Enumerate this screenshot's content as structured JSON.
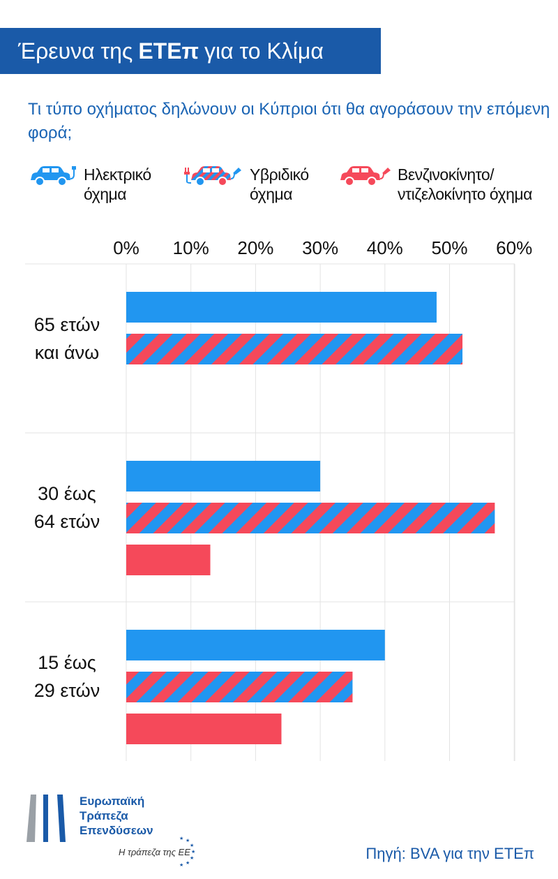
{
  "header": {
    "title_pre": "Έρευνα της",
    "title_bold": "ΕΤΕπ",
    "title_post": "για το Κλίμα"
  },
  "question": "Τι τύπο οχήματος δηλώνουν οι Κύπριοι ότι θα αγοράσουν την επόμενη φορά;",
  "legend": [
    {
      "line1": "Ηλεκτρικό",
      "line2": "όχημα",
      "icon": "electric-car-icon"
    },
    {
      "line1": "Υβριδικό",
      "line2": "όχημα",
      "icon": "hybrid-car-icon"
    },
    {
      "line1": "Βενζινοκίνητο/",
      "line2": "ντιζελοκίνητο όχημα",
      "icon": "fuel-car-icon"
    }
  ],
  "colors": {
    "electric": "#2196f0",
    "fuel": "#f5495a",
    "banner": "#1a5aa8",
    "text_blue": "#1a64b4"
  },
  "chart_data": {
    "type": "bar",
    "orientation": "horizontal",
    "x_ticks": [
      "0%",
      "10%",
      "20%",
      "30%",
      "40%",
      "50%",
      "60%"
    ],
    "xlim": [
      0,
      60
    ],
    "grid": true,
    "categories": [
      {
        "line1": "65 ετών",
        "line2": "και άνω"
      },
      {
        "line1": "30 έως",
        "line2": "64 ετών"
      },
      {
        "line1": "15 έως",
        "line2": "29 ετών"
      }
    ],
    "series": [
      {
        "name": "Ηλεκτρικό όχημα",
        "key": "electric",
        "values": [
          48,
          30,
          40
        ]
      },
      {
        "name": "Υβριδικό όχημα",
        "key": "hybrid",
        "values": [
          52,
          57,
          35
        ]
      },
      {
        "name": "Βενζινοκίνητο/ντιζελοκίνητο όχημα",
        "key": "fuel",
        "values": [
          0,
          13,
          24
        ]
      }
    ]
  },
  "footer": {
    "logo_line1": "Ευρωπαϊκή",
    "logo_line2": "Τράπεζα",
    "logo_line3": "Επενδύσεων",
    "tagline": "Η τράπεζα της ΕΕ",
    "source": "Πηγή: BVA για την ΕΤΕπ"
  }
}
